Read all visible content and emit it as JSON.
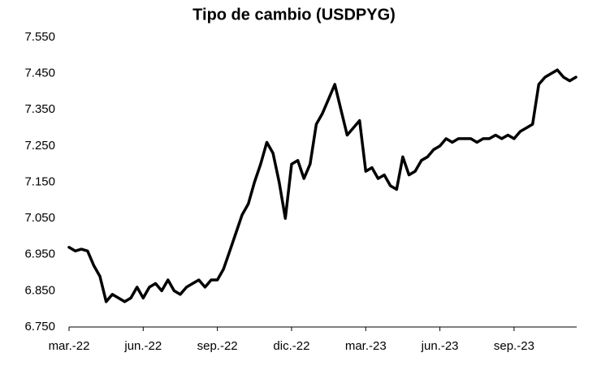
{
  "chart_data": {
    "type": "line",
    "title": "Tipo de cambio (USDPYG)",
    "categories": [
      "mar.-22",
      null,
      null,
      null,
      null,
      null,
      null,
      null,
      null,
      null,
      null,
      null,
      "jun.-22",
      null,
      null,
      null,
      null,
      null,
      null,
      null,
      null,
      null,
      null,
      null,
      "sep.-22",
      null,
      null,
      null,
      null,
      null,
      null,
      null,
      null,
      null,
      null,
      null,
      "dic.-22",
      null,
      null,
      null,
      null,
      null,
      null,
      null,
      null,
      null,
      null,
      null,
      "mar.-23",
      null,
      null,
      null,
      null,
      null,
      null,
      null,
      null,
      null,
      null,
      null,
      "jun.-23",
      null,
      null,
      null,
      null,
      null,
      null,
      null,
      null,
      null,
      null,
      null,
      "sep.-23",
      null,
      null,
      null,
      null,
      null,
      null,
      null,
      null,
      null,
      null
    ],
    "values": [
      6970,
      6960,
      6965,
      6960,
      6920,
      6890,
      6820,
      6840,
      6830,
      6820,
      6830,
      6860,
      6830,
      6860,
      6870,
      6850,
      6880,
      6850,
      6840,
      6860,
      6870,
      6880,
      6860,
      6880,
      6880,
      6910,
      6960,
      7010,
      7060,
      7090,
      7150,
      7200,
      7260,
      7230,
      7150,
      7050,
      7200,
      7210,
      7160,
      7200,
      7310,
      7340,
      7380,
      7420,
      7350,
      7280,
      7300,
      7320,
      7180,
      7190,
      7160,
      7170,
      7140,
      7130,
      7220,
      7170,
      7180,
      7210,
      7220,
      7240,
      7250,
      7270,
      7260,
      7270,
      7270,
      7270,
      7260,
      7270,
      7270,
      7280,
      7270,
      7280,
      7270,
      7290,
      7300,
      7310,
      7420,
      7440,
      7450,
      7460,
      7440,
      7430,
      7440
    ],
    "color": "#000000",
    "ylim": [
      6750,
      7550
    ],
    "yticks": [
      {
        "value": 6750,
        "label": "6.750"
      },
      {
        "value": 6850,
        "label": "6.850"
      },
      {
        "value": 6950,
        "label": "6.950"
      },
      {
        "value": 7050,
        "label": "7.050"
      },
      {
        "value": 7150,
        "label": "7.150"
      },
      {
        "value": 7250,
        "label": "7.250"
      },
      {
        "value": 7350,
        "label": "7.350"
      },
      {
        "value": 7450,
        "label": "7.450"
      },
      {
        "value": 7550,
        "label": "7.550"
      }
    ],
    "grid": false
  }
}
